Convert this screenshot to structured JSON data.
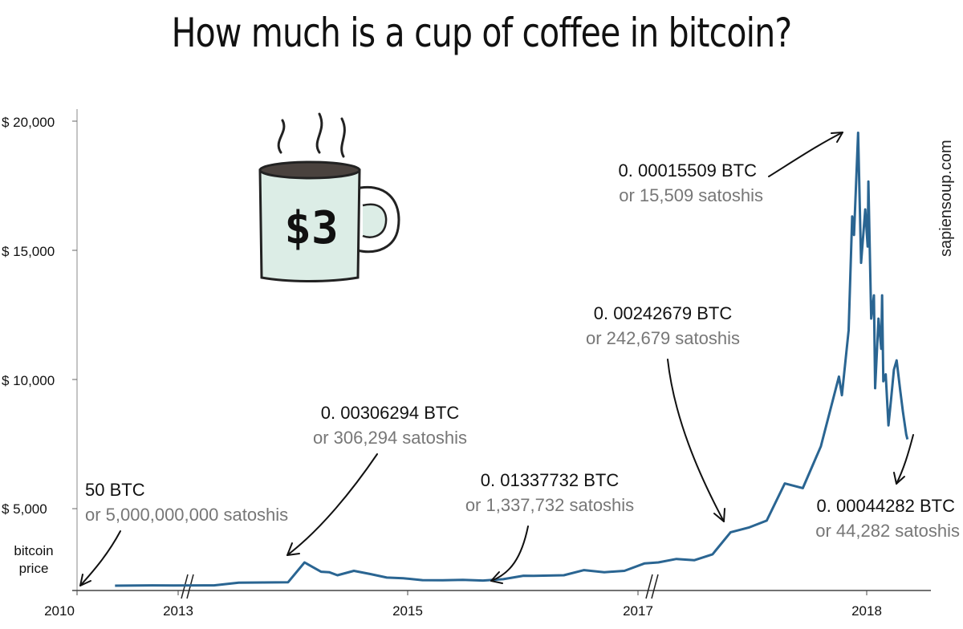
{
  "title": "How much is a cup of coffee in bitcoin?",
  "watermark": "sapiensoup.com",
  "mug": {
    "label": "$3"
  },
  "chart_data": {
    "type": "line",
    "title": "How much is a cup of coffee in bitcoin?",
    "ylabel": "bitcoin price",
    "xlabel": "",
    "x_ticks": [
      "2010",
      "2013",
      "2015",
      "2017",
      "2018"
    ],
    "y_ticks": [
      "$ 5,000",
      "$ 10,000",
      "$ 15,000",
      "$ 20,000"
    ],
    "ylim": [
      0,
      20000
    ],
    "grid": false,
    "axis_breaks": [
      "2010-2013",
      "2016-2017"
    ],
    "series": [
      {
        "color": "#2a6592",
        "points": [
          [
            "2010-07",
            0
          ],
          [
            "2011-06",
            15
          ],
          [
            "2012-06",
            6
          ],
          [
            "2013-01",
            14
          ],
          [
            "2013-04",
            130
          ],
          [
            "2013-10",
            150
          ],
          [
            "2013-12",
            1000
          ],
          [
            "2014-01",
            800
          ],
          [
            "2014-02",
            600
          ],
          [
            "2014-03",
            580
          ],
          [
            "2014-04",
            450
          ],
          [
            "2014-06",
            640
          ],
          [
            "2014-08",
            500
          ],
          [
            "2014-10",
            350
          ],
          [
            "2014-12",
            320
          ],
          [
            "2015-02",
            240
          ],
          [
            "2015-04",
            230
          ],
          [
            "2015-06",
            250
          ],
          [
            "2015-08",
            220
          ],
          [
            "2015-10",
            280
          ],
          [
            "2015-12",
            430
          ],
          [
            "2016-01",
            420
          ],
          [
            "2016-04",
            450
          ],
          [
            "2016-06",
            670
          ],
          [
            "2016-08",
            580
          ],
          [
            "2016-10",
            640
          ],
          [
            "2016-12",
            960
          ],
          [
            "2017-01",
            1000
          ],
          [
            "2017-02",
            1150
          ],
          [
            "2017-03",
            1100
          ],
          [
            "2017-04",
            1350
          ],
          [
            "2017-05",
            2300
          ],
          [
            "2017-06",
            2500
          ],
          [
            "2017-07",
            2800
          ],
          [
            "2017-08",
            4400
          ],
          [
            "2017-09",
            4200
          ],
          [
            "2017-10",
            6000
          ],
          [
            "2017-11",
            9000
          ],
          [
            "2017-11-20",
            8200
          ],
          [
            "2017-12-01",
            11000
          ],
          [
            "2017-12-07",
            15900
          ],
          [
            "2017-12-10",
            15100
          ],
          [
            "2017-12-17",
            19500
          ],
          [
            "2017-12-22",
            13900
          ],
          [
            "2017-12-29",
            16200
          ],
          [
            "2018-01-05",
            14600
          ],
          [
            "2018-01-08",
            17400
          ],
          [
            "2018-01-20",
            11500
          ],
          [
            "2018-02-01",
            12500
          ],
          [
            "2018-02-06",
            8500
          ],
          [
            "2018-02-20",
            11500
          ],
          [
            "2018-03-01",
            10200
          ],
          [
            "2018-03-05",
            12500
          ],
          [
            "2018-03-10",
            8800
          ],
          [
            "2018-03-20",
            9100
          ],
          [
            "2018-04-01",
            6900
          ],
          [
            "2018-04-12",
            8000
          ],
          [
            "2018-04-24",
            9300
          ],
          [
            "2018-05-05",
            9700
          ],
          [
            "2018-05-20",
            8400
          ],
          [
            "2018-06-01",
            7500
          ],
          [
            "2018-06-15",
            6500
          ],
          [
            "2018-06-20",
            6300
          ]
        ]
      }
    ],
    "annotations": [
      {
        "btc": "50 BTC",
        "sats": "or 5,000,000,000 satoshis"
      },
      {
        "btc": "0. 00306294 BTC",
        "sats": "or 306,294 satoshis"
      },
      {
        "btc": "0. 01337732 BTC",
        "sats": "or 1,337,732 satoshis"
      },
      {
        "btc": "0. 00242679 BTC",
        "sats": "or 242,679 satoshis"
      },
      {
        "btc": "0. 00015509 BTC",
        "sats": "or 15,509 satoshis"
      },
      {
        "btc": "0. 00044282 BTC",
        "sats": "or 44,282 satoshis"
      }
    ]
  }
}
